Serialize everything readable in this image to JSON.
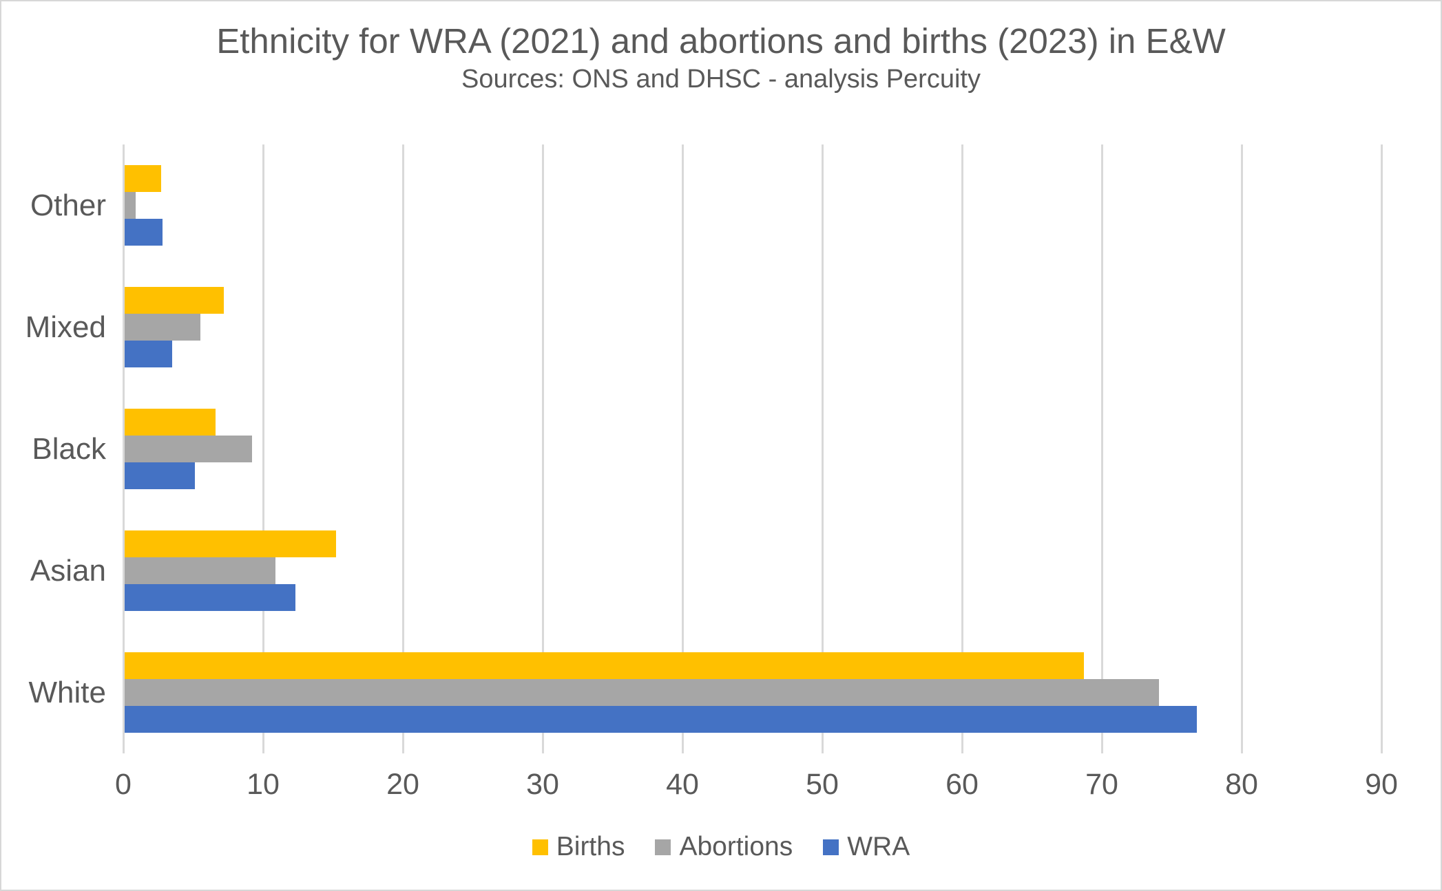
{
  "chart_data": {
    "type": "bar",
    "orientation": "horizontal",
    "title": "Ethnicity for WRA (2021) and abortions and births (2023) in E&W",
    "subtitle": "Sources: ONS and DHSC - analysis Percuity",
    "categories": [
      "Other",
      "Mixed",
      "Black",
      "Asian",
      "White"
    ],
    "series": [
      {
        "name": "Births",
        "color": "#FFC000",
        "values": [
          2.6,
          7.1,
          6.5,
          15.1,
          68.6
        ]
      },
      {
        "name": "Abortions",
        "color": "#A6A6A6",
        "values": [
          0.8,
          5.4,
          9.1,
          10.8,
          74.0
        ]
      },
      {
        "name": "WRA",
        "color": "#4472C4",
        "values": [
          2.7,
          3.4,
          5.0,
          12.2,
          76.7
        ]
      }
    ],
    "xlabel": "",
    "ylabel": "",
    "xlim": [
      0,
      90
    ],
    "x_ticks": [
      0,
      10,
      20,
      30,
      40,
      50,
      60,
      70,
      80,
      90
    ],
    "grid": "vertical",
    "legend_position": "bottom",
    "colors": {
      "text": "#595959",
      "grid": "#d9d9d9",
      "background": "#ffffff",
      "border": "#d7d7d7"
    }
  }
}
